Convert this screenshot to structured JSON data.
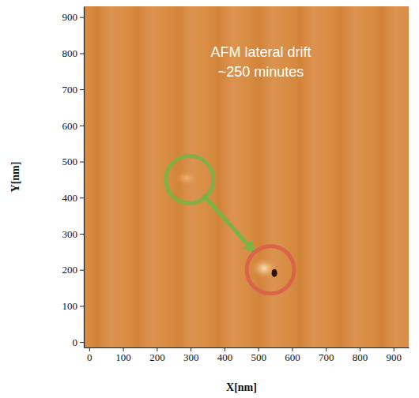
{
  "chart_data": {
    "type": "scatter",
    "annotations": [
      "AFM lateral drift",
      "~250 minutes"
    ],
    "x_label": "X[nm]",
    "y_label": "Y[nm]",
    "x": [
      297,
      536
    ],
    "values": [
      450,
      200
    ],
    "colors": [
      "#7bb344",
      "#d9604a"
    ],
    "marker": "circle",
    "xlim": [
      -16,
      945
    ],
    "ylim": [
      -15,
      930
    ],
    "xticks": [
      0,
      100,
      200,
      300,
      400,
      500,
      600,
      700,
      800,
      900
    ],
    "yticks": [
      0,
      100,
      200,
      300,
      400,
      500,
      600,
      700,
      800,
      900
    ]
  }
}
